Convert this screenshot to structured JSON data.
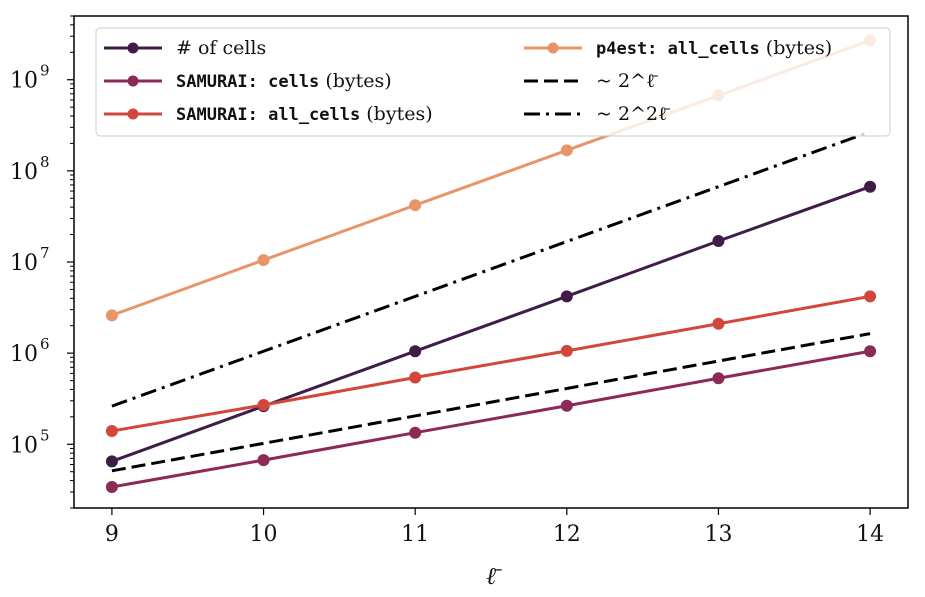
{
  "chart_data": {
    "type": "line",
    "title": "",
    "xlabel": "ℓ̄",
    "ylabel": "",
    "x": [
      9,
      10,
      11,
      12,
      13,
      14
    ],
    "x_ticks": [
      "9",
      "10",
      "11",
      "12",
      "13",
      "14"
    ],
    "xlim": [
      8.75,
      14.25
    ],
    "yscale": "log",
    "ylim": [
      20000,
      5000000000
    ],
    "y_ticks": [
      {
        "base": "10",
        "exp": "5",
        "value": 100000
      },
      {
        "base": "10",
        "exp": "6",
        "value": 1000000
      },
      {
        "base": "10",
        "exp": "7",
        "value": 10000000
      },
      {
        "base": "10",
        "exp": "8",
        "value": 100000000
      },
      {
        "base": "10",
        "exp": "9",
        "value": 1000000000
      }
    ],
    "grid": false,
    "legend_position": "top",
    "legend_columns": 2,
    "series": [
      {
        "key": "num_cells",
        "legend": [
          {
            "text": "# of cells",
            "style": "serif"
          }
        ],
        "color": "#3f1d47",
        "dash": "solid",
        "markers": true,
        "values": [
          65000,
          262000,
          1050000,
          4200000,
          17000000,
          67000000
        ]
      },
      {
        "key": "samurai_cells",
        "legend": [
          {
            "text": "SAMURAI: cells",
            "style": "mono"
          },
          {
            "text": " (bytes)",
            "style": "serif"
          }
        ],
        "color": "#8b2a57",
        "dash": "solid",
        "markers": true,
        "values": [
          34000,
          67000,
          134000,
          265000,
          530000,
          1050000
        ]
      },
      {
        "key": "samurai_all_cells",
        "legend": [
          {
            "text": "SAMURAI: all_cells",
            "style": "mono"
          },
          {
            "text": " (bytes)",
            "style": "serif"
          }
        ],
        "color": "#d2463c",
        "dash": "solid",
        "markers": true,
        "values": [
          140000,
          270000,
          540000,
          1060000,
          2100000,
          4200000
        ]
      },
      {
        "key": "p4est_all_cells",
        "legend": [
          {
            "text": "p4est:  all_cells",
            "style": "mono"
          },
          {
            "text": " (bytes)",
            "style": "serif"
          }
        ],
        "color": "#e8956a",
        "dash": "solid",
        "markers": true,
        "values": [
          2600000,
          10500000,
          42000000,
          168000000,
          670000000,
          2700000000
        ]
      },
      {
        "key": "ref_2l",
        "legend": [
          {
            "text": "~ 2^ℓ̄",
            "style": "serif"
          }
        ],
        "color": "#000000",
        "dash": "dashed",
        "markers": false,
        "values": [
          51200,
          102400,
          204800,
          409600,
          819200,
          1638400
        ]
      },
      {
        "key": "ref_22l",
        "legend": [
          {
            "text": "~ 2^2ℓ̄",
            "style": "serif"
          }
        ],
        "color": "#000000",
        "dash": "dashdot",
        "markers": false,
        "values": [
          262144,
          1048576,
          4194304,
          16777216,
          67108864,
          268435456
        ]
      }
    ]
  }
}
